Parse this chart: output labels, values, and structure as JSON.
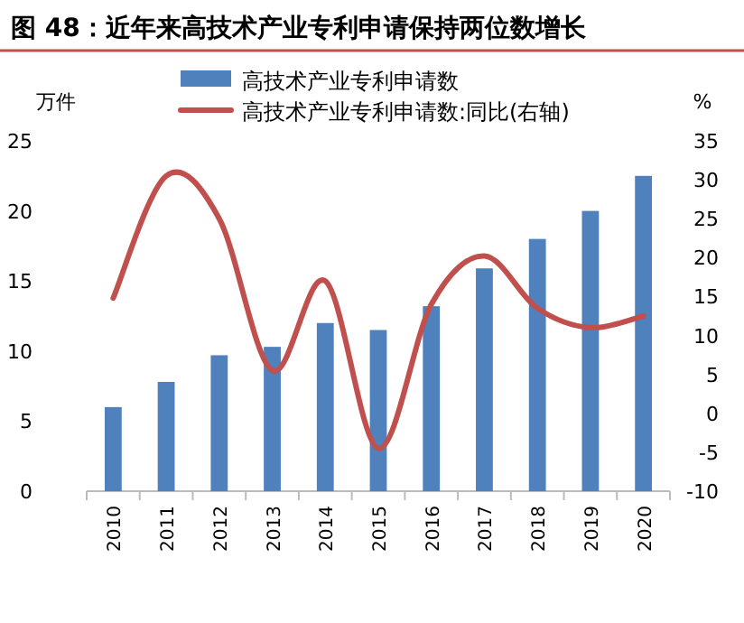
{
  "chart_data": {
    "type": "bar",
    "title": "图 48：近年来高技术产业专利申请保持两位数增长",
    "ylabel": "万件",
    "y2label": "%",
    "categories": [
      "2010",
      "2011",
      "2012",
      "2013",
      "2014",
      "2015",
      "2016",
      "2017",
      "2018",
      "2019",
      "2020"
    ],
    "series": [
      {
        "name": "高技术产业专利申请数",
        "color": "#4f81bd",
        "values": [
          6.0,
          7.8,
          9.7,
          10.3,
          12.0,
          11.5,
          13.2,
          15.9,
          18.0,
          20.0,
          22.5
        ]
      },
      {
        "name": "高技术产业专利申请数:同比(右轴)",
        "color": "#c0504d",
        "type": "line",
        "axis": "y2",
        "values": [
          14.8,
          30.5,
          25,
          5.5,
          17,
          -4.5,
          14,
          20.2,
          13.5,
          11,
          12.5
        ]
      }
    ],
    "ylim": [
      0,
      25
    ],
    "yticks": [
      0,
      5,
      10,
      15,
      20,
      25
    ],
    "y2lim": [
      -10,
      35
    ],
    "y2ticks": [
      -10,
      -5,
      0,
      5,
      10,
      15,
      20,
      25,
      30,
      35
    ],
    "legend": "top",
    "grid": false
  }
}
